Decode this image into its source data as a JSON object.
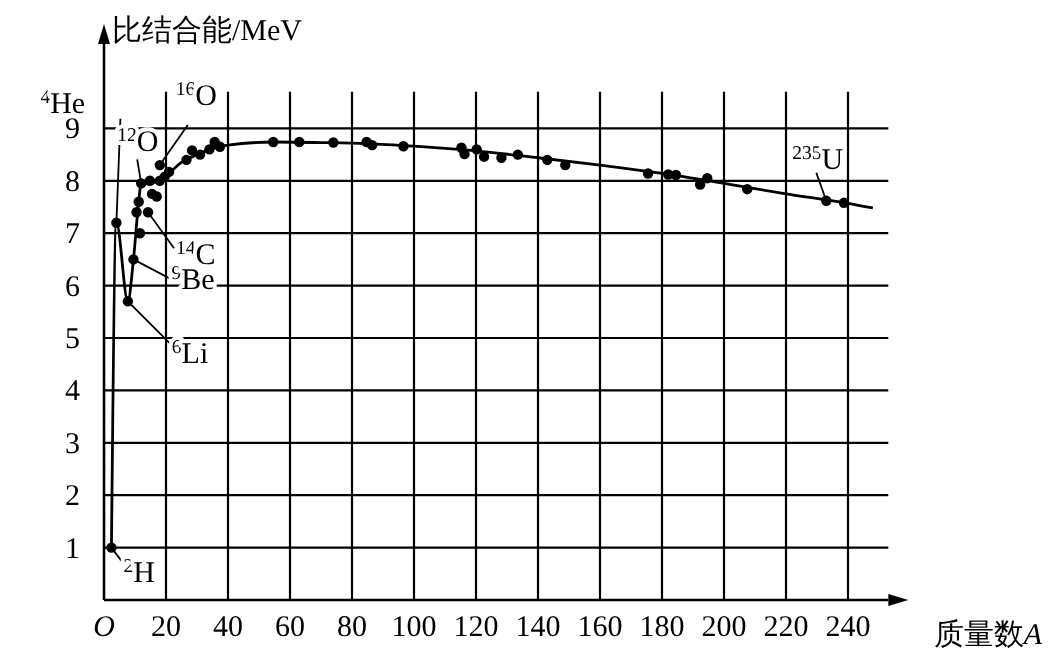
{
  "chart_data": {
    "type": "scatter",
    "ylabel": "比结合能/MeV",
    "xlabel": "质量数$_{}$A",
    "xlim": [
      0,
      253
    ],
    "ylim": [
      0,
      9.7
    ],
    "xticks": [
      {
        "value": 0,
        "label": "O"
      },
      20,
      40,
      60,
      80,
      100,
      120,
      140,
      160,
      180,
      200,
      220,
      240
    ],
    "yticks": [
      1,
      2,
      3,
      4,
      5,
      6,
      7,
      8,
      9
    ],
    "grid": true,
    "series": [
      {
        "type": "line",
        "marker": "none",
        "color": "#000000",
        "x": [
          2.4,
          4,
          7.7,
          9.5,
          11.2,
          12,
          15,
          20,
          25,
          30,
          40,
          55,
          70,
          85,
          100,
          120,
          140,
          160,
          180,
          200,
          220,
          240,
          248
        ],
        "values": [
          1.0,
          7.2,
          5.7,
          6.5,
          7.6,
          7.95,
          7.95,
          8.1,
          8.35,
          8.5,
          8.68,
          8.74,
          8.73,
          8.71,
          8.66,
          8.57,
          8.44,
          8.3,
          8.14,
          7.95,
          7.75,
          7.57,
          7.48
        ]
      },
      {
        "marker": "circle",
        "color": "#000000",
        "x": [
          2.4,
          4,
          7.7,
          9.5,
          11.6,
          10.5,
          11.2,
          12,
          14.8,
          14.2,
          15.5,
          17,
          18,
          19.6,
          21,
          18,
          26.6,
          28.4,
          31,
          34,
          35.7,
          37.4,
          54.6,
          63,
          74,
          84.7,
          86.5,
          96.6,
          115.3,
          116.3,
          120.2,
          122.6,
          128.2,
          133.5,
          143,
          148.8,
          175.5,
          182,
          184.5,
          192.3,
          194.6,
          207.5,
          233,
          238.7
        ],
        "values": [
          1.0,
          7.2,
          5.7,
          6.5,
          7.0,
          7.4,
          7.6,
          7.95,
          8.0,
          7.4,
          7.75,
          7.7,
          8.0,
          8.08,
          8.17,
          8.3,
          8.4,
          8.58,
          8.5,
          8.6,
          8.74,
          8.65,
          8.74,
          8.74,
          8.73,
          8.74,
          8.68,
          8.66,
          8.63,
          8.51,
          8.6,
          8.46,
          8.44,
          8.5,
          8.4,
          8.3,
          8.14,
          8.12,
          8.11,
          7.93,
          8.05,
          7.84,
          7.62,
          7.58
        ]
      }
    ],
    "annotations": [
      {
        "text": "$^{4}$He",
        "x": 4,
        "y": 7.2
      },
      {
        "text": "$^{16}$O",
        "x": 18,
        "y": 8.3
      },
      {
        "text": "$^{12}$O",
        "x": 12,
        "y": 7.95
      },
      {
        "text": "$^{14}$C",
        "x": 14.2,
        "y": 7.4
      },
      {
        "text": "$^{9}$Be",
        "x": 9.5,
        "y": 6.5
      },
      {
        "text": "$^{6}$Li",
        "x": 7.7,
        "y": 5.7
      },
      {
        "text": "$^{2}$H",
        "x": 2.4,
        "y": 1.0
      },
      {
        "text": "$^{235}$U",
        "x": 233,
        "y": 7.62
      }
    ]
  }
}
